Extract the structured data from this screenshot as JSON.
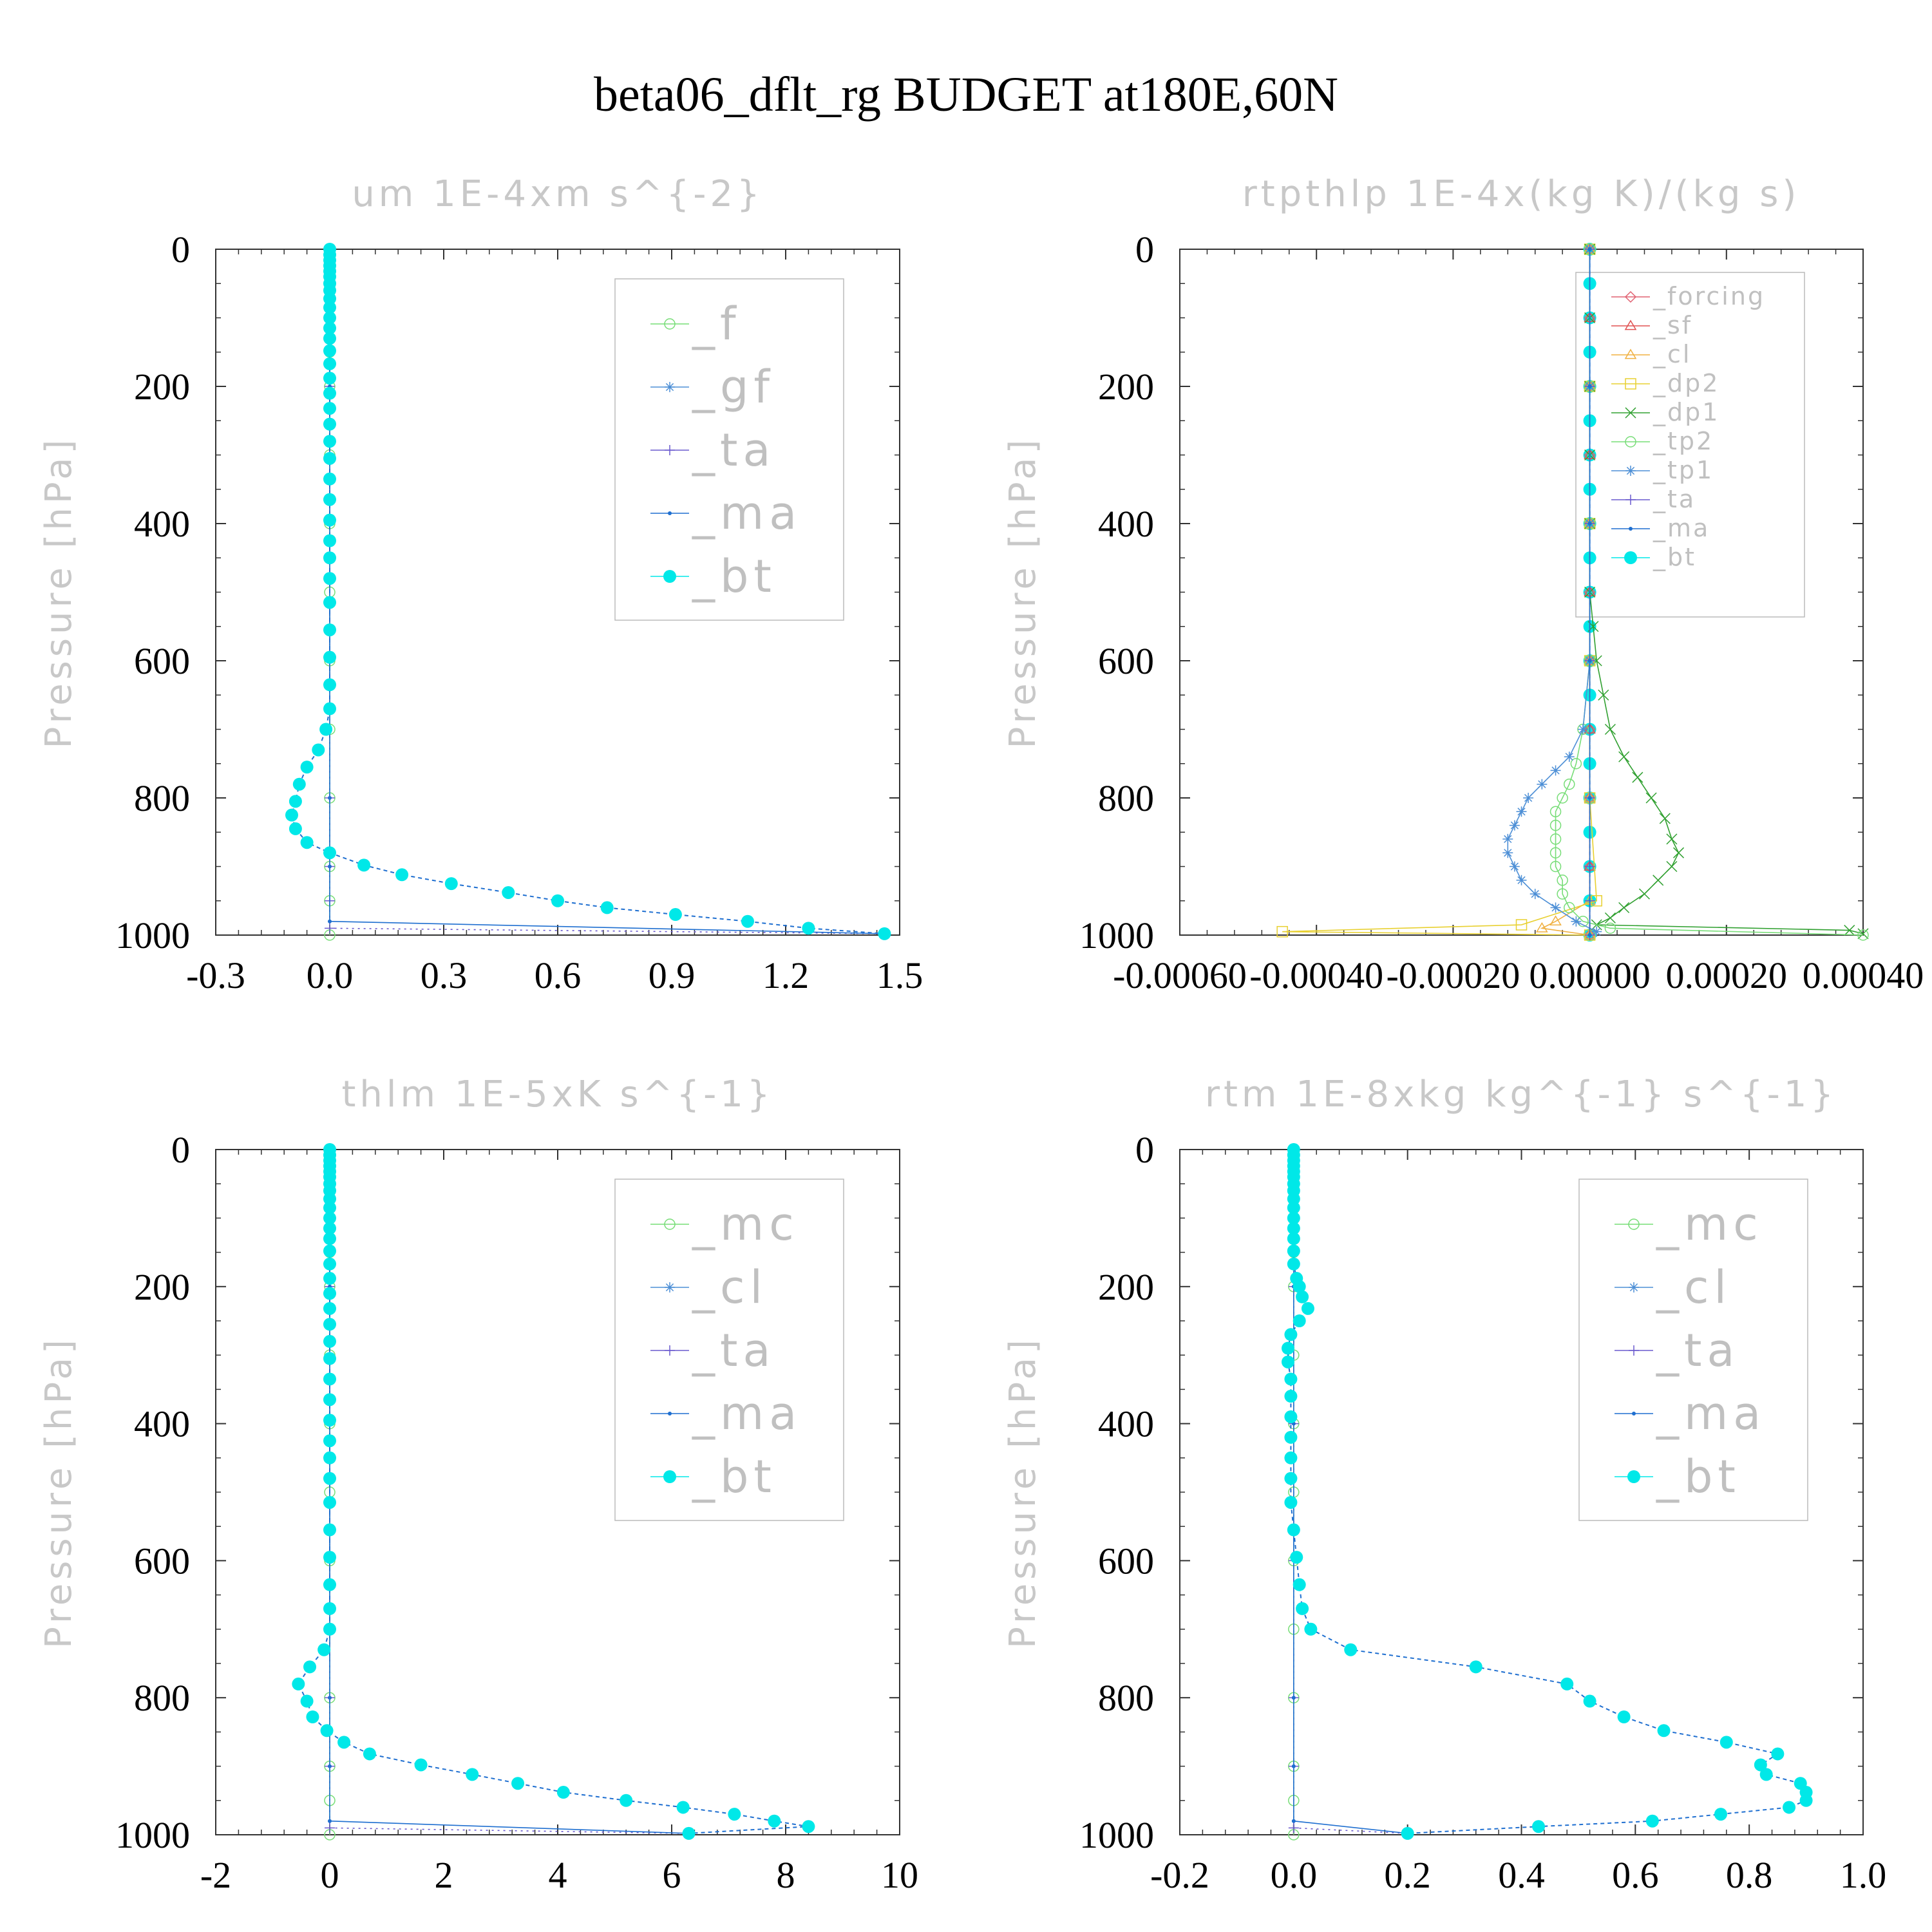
{
  "title": "beta06_dflt_rg  BUDGET at180E,60N",
  "colors": {
    "f": "#77dd77",
    "gf": "#4d8fd6",
    "ta": "#6a5acd",
    "ma": "#1f6fd0",
    "bt": "#00e8e8",
    "forcing": "#e06070",
    "sf": "#e05050",
    "cl_orange": "#f0b040",
    "dp2": "#e8d030",
    "dp1": "#30a030",
    "tp2": "#77dd77",
    "tp1": "#4d8fd6",
    "mc": "#77dd77",
    "cl": "#4d8fd6"
  },
  "chart_data": [
    {
      "type": "line",
      "title": "um   1E-4xm s^{-2}",
      "ylabel": "Pressure [hPa]",
      "xlim": [
        -0.3,
        1.5
      ],
      "ylim": [
        1000,
        0
      ],
      "xticks": [
        "-0.3",
        "0.0",
        "0.3",
        "0.6",
        "0.9",
        "1.2",
        "1.5"
      ],
      "yticks": [
        "0",
        "200",
        "400",
        "600",
        "800",
        "1000"
      ],
      "legend": [
        "_f",
        "_gf",
        "_ta",
        "_ma",
        "_bt"
      ],
      "legend_position": "top-right",
      "series": [
        {
          "name": "_f",
          "color_key": "f",
          "marker": "circle",
          "y": [
            0,
            50,
            100,
            150,
            200,
            300,
            400,
            500,
            600,
            700,
            800,
            900,
            950,
            1000
          ],
          "x": [
            0,
            0,
            0,
            0,
            0,
            0,
            0,
            0,
            0,
            0,
            0,
            0,
            0,
            0
          ]
        },
        {
          "name": "_ta",
          "color_key": "ta",
          "marker": "plus",
          "y": [
            0,
            200,
            400,
            600,
            800,
            900,
            950,
            990,
            998
          ],
          "x": [
            0,
            0,
            0,
            0,
            0,
            0,
            0,
            0,
            1.46
          ]
        },
        {
          "name": "_ma",
          "color_key": "ma",
          "marker": "dot",
          "y": [
            0,
            200,
            400,
            600,
            800,
            900,
            980,
            998
          ],
          "x": [
            0,
            0,
            0,
            0,
            0,
            0,
            0,
            1.46
          ]
        },
        {
          "name": "_bt",
          "color_key": "bt",
          "marker": "bigdot",
          "y": [
            0,
            8,
            16,
            24,
            32,
            40,
            50,
            60,
            72,
            85,
            100,
            115,
            130,
            148,
            167,
            188,
            210,
            232,
            255,
            280,
            305,
            335,
            365,
            395,
            425,
            450,
            480,
            515,
            555,
            595,
            635,
            670,
            700,
            730,
            755,
            780,
            805,
            825,
            845,
            865,
            880,
            898,
            912,
            925,
            938,
            950,
            960,
            970,
            980,
            990,
            998
          ],
          "x": [
            0,
            0,
            0,
            0,
            0,
            0,
            0,
            0,
            0,
            0,
            0,
            0,
            0,
            0,
            0,
            0,
            0,
            0,
            0,
            0,
            0,
            0,
            0,
            0,
            0,
            0,
            0,
            0,
            0,
            0,
            0,
            0,
            -0.01,
            -0.03,
            -0.06,
            -0.08,
            -0.09,
            -0.1,
            -0.09,
            -0.06,
            0.0,
            0.09,
            0.19,
            0.32,
            0.47,
            0.6,
            0.73,
            0.91,
            1.1,
            1.26,
            1.46
          ]
        }
      ]
    },
    {
      "type": "line",
      "title": "rtpthlp   1E-4x(kg K)/(kg s)",
      "ylabel": "Pressure [hPa]",
      "xlim": [
        -0.0006,
        0.0004
      ],
      "ylim": [
        1000,
        0
      ],
      "xticks": [
        "-0.00060",
        "-0.00040",
        "-0.00020",
        "0.00000",
        "0.00020",
        "0.00040"
      ],
      "yticks": [
        "0",
        "200",
        "400",
        "600",
        "800",
        "1000"
      ],
      "legend": [
        "_forcing",
        "_sf",
        "_cl",
        "_dp2",
        "_dp1",
        "_tp2",
        "_tp1",
        "_ta",
        "_ma",
        "_bt"
      ],
      "legend_position": "top-right",
      "series": [
        {
          "name": "_bt",
          "color_key": "bt",
          "marker": "bigdot",
          "y": [
            0,
            50,
            100,
            150,
            200,
            250,
            300,
            350,
            400,
            450,
            500,
            550,
            600,
            650,
            700,
            750,
            800,
            850,
            900,
            950,
            1000
          ],
          "x": [
            0,
            0,
            0,
            0,
            0,
            0,
            0,
            0,
            0,
            0,
            0,
            0,
            0,
            0,
            0,
            0,
            0,
            0,
            0,
            0,
            0
          ]
        },
        {
          "name": "_forcing",
          "color_key": "forcing",
          "marker": "diamond",
          "y": [
            0,
            100,
            200,
            300,
            400,
            500,
            600,
            700,
            800,
            900,
            1000
          ],
          "x": [
            0,
            0,
            0,
            0,
            0,
            0,
            0,
            0,
            0,
            0,
            0
          ]
        },
        {
          "name": "_sf",
          "color_key": "sf",
          "marker": "triangle",
          "y": [
            0,
            100,
            200,
            300,
            400,
            500,
            600,
            700,
            800,
            900,
            1000
          ],
          "x": [
            0,
            0,
            0,
            0,
            0,
            0,
            0,
            0,
            0,
            0,
            0
          ]
        },
        {
          "name": "_cl",
          "color_key": "cl_orange",
          "marker": "triangle",
          "y": [
            0,
            200,
            400,
            600,
            800,
            950,
            980,
            990,
            1000
          ],
          "x": [
            0,
            0,
            0,
            0,
            0,
            0,
            -5e-05,
            -7e-05,
            0
          ]
        },
        {
          "name": "_dp2",
          "color_key": "dp2",
          "marker": "square",
          "y": [
            0,
            200,
            400,
            600,
            800,
            950,
            985,
            995,
            1000
          ],
          "x": [
            0,
            0,
            0,
            0,
            0,
            1e-05,
            -0.0001,
            -0.00045,
            0
          ]
        },
        {
          "name": "_dp1",
          "color_key": "dp1",
          "marker": "cross",
          "y": [
            0,
            100,
            200,
            300,
            400,
            500,
            550,
            600,
            650,
            700,
            740,
            770,
            800,
            830,
            860,
            880,
            900,
            920,
            940,
            960,
            975,
            985,
            993,
            998
          ],
          "x": [
            0,
            0,
            0,
            0,
            0,
            0,
            5e-06,
            1e-05,
            2e-05,
            3e-05,
            5e-05,
            7e-05,
            9e-05,
            0.00011,
            0.00012,
            0.00013,
            0.00012,
            0.0001,
            8e-05,
            5e-05,
            3e-05,
            1e-05,
            0.00038,
            0.0004
          ]
        },
        {
          "name": "_tp2",
          "color_key": "tp2",
          "marker": "circle",
          "y": [
            0,
            200,
            400,
            600,
            700,
            750,
            780,
            800,
            820,
            840,
            860,
            880,
            900,
            920,
            940,
            960,
            980,
            990,
            1000
          ],
          "x": [
            0,
            0,
            0,
            0,
            -1e-05,
            -2e-05,
            -3e-05,
            -4e-05,
            -5e-05,
            -5e-05,
            -5e-05,
            -5e-05,
            -5e-05,
            -4e-05,
            -4e-05,
            -3e-05,
            -1e-05,
            3e-05,
            0.0004
          ]
        },
        {
          "name": "_tp1",
          "color_key": "tp1",
          "marker": "star",
          "y": [
            0,
            200,
            400,
            600,
            700,
            740,
            760,
            780,
            800,
            820,
            840,
            860,
            880,
            900,
            920,
            940,
            960,
            980,
            995
          ],
          "x": [
            0,
            0,
            0,
            0,
            -1e-05,
            -3e-05,
            -5e-05,
            -7e-05,
            -9e-05,
            -0.0001,
            -0.00011,
            -0.00012,
            -0.00012,
            -0.00011,
            -0.0001,
            -8e-05,
            -5e-05,
            -2e-05,
            1e-05
          ]
        },
        {
          "name": "_ta",
          "color_key": "ta",
          "marker": "plus",
          "y": [
            0,
            200,
            400,
            600,
            800,
            900,
            950,
            1000
          ],
          "x": [
            0,
            0,
            0,
            0,
            0,
            0,
            0,
            0
          ]
        },
        {
          "name": "_ma",
          "color_key": "ma",
          "marker": "dot",
          "y": [
            0,
            200,
            400,
            600,
            800,
            1000
          ],
          "x": [
            0,
            0,
            0,
            0,
            0,
            0
          ]
        }
      ]
    },
    {
      "type": "line",
      "title": "thlm   1E-5xK s^{-1}",
      "ylabel": "Pressure [hPa]",
      "xlim": [
        -2,
        10
      ],
      "ylim": [
        1000,
        0
      ],
      "xticks": [
        "-2",
        "0",
        "2",
        "4",
        "6",
        "8",
        "10"
      ],
      "yticks": [
        "0",
        "200",
        "400",
        "600",
        "800",
        "1000"
      ],
      "legend": [
        "_mc",
        "_cl",
        "_ta",
        "_ma",
        "_bt"
      ],
      "legend_position": "top-right",
      "series": [
        {
          "name": "_mc",
          "color_key": "mc",
          "marker": "circle",
          "y": [
            0,
            50,
            100,
            150,
            200,
            300,
            400,
            500,
            600,
            700,
            800,
            900,
            950,
            1000
          ],
          "x": [
            0,
            0,
            0,
            0,
            0,
            0,
            0,
            0,
            0,
            0,
            0,
            0,
            0,
            0
          ]
        },
        {
          "name": "_ta",
          "color_key": "ta",
          "marker": "plus",
          "y": [
            0,
            200,
            400,
            600,
            800,
            900,
            990,
            998
          ],
          "x": [
            0,
            0,
            0,
            0,
            0,
            0,
            0,
            6.3
          ]
        },
        {
          "name": "_ma",
          "color_key": "ma",
          "marker": "dot",
          "y": [
            0,
            200,
            400,
            600,
            800,
            900,
            980,
            998
          ],
          "x": [
            0,
            0,
            0,
            0,
            0,
            0,
            0,
            6.3
          ]
        },
        {
          "name": "_bt",
          "color_key": "bt",
          "marker": "bigdot",
          "y": [
            0,
            8,
            16,
            24,
            32,
            40,
            50,
            60,
            72,
            85,
            100,
            115,
            130,
            148,
            167,
            188,
            210,
            232,
            255,
            280,
            305,
            335,
            365,
            395,
            425,
            450,
            480,
            515,
            555,
            595,
            635,
            670,
            700,
            730,
            755,
            780,
            805,
            828,
            848,
            865,
            882,
            898,
            912,
            925,
            938,
            950,
            960,
            970,
            980,
            988,
            998
          ],
          "x": [
            0,
            0,
            0,
            0,
            0,
            0,
            0,
            0,
            0,
            0,
            0,
            0,
            0,
            0,
            0,
            0,
            0,
            0,
            0,
            0,
            0,
            0,
            0,
            0,
            0,
            0,
            0,
            0,
            0,
            0,
            0,
            0,
            0,
            -0.1,
            -0.35,
            -0.55,
            -0.4,
            -0.3,
            -0.05,
            0.25,
            0.7,
            1.6,
            2.5,
            3.3,
            4.1,
            5.2,
            6.2,
            7.1,
            7.8,
            8.4,
            6.3
          ]
        }
      ]
    },
    {
      "type": "line",
      "title": "rtm   1E-8xkg kg^{-1} s^{-1}",
      "ylabel": "Pressure [hPa]",
      "xlim": [
        -0.2,
        1.0
      ],
      "ylim": [
        1000,
        0
      ],
      "xticks": [
        "-0.2",
        "0.0",
        "0.2",
        "0.4",
        "0.6",
        "0.8",
        "1.0"
      ],
      "yticks": [
        "0",
        "200",
        "400",
        "600",
        "800",
        "1000"
      ],
      "legend": [
        "_mc",
        "_cl",
        "_ta",
        "_ma",
        "_bt"
      ],
      "legend_position": "top-right",
      "series": [
        {
          "name": "_mc",
          "color_key": "mc",
          "marker": "circle",
          "y": [
            0,
            50,
            100,
            150,
            200,
            300,
            400,
            500,
            600,
            700,
            800,
            900,
            950,
            1000
          ],
          "x": [
            0,
            0,
            0,
            0,
            0,
            0,
            0,
            0,
            0,
            0,
            0,
            0,
            0,
            0
          ]
        },
        {
          "name": "_ta",
          "color_key": "ta",
          "marker": "plus",
          "y": [
            0,
            200,
            400,
            600,
            800,
            900,
            990,
            998
          ],
          "x": [
            0,
            0,
            0,
            0,
            0,
            0,
            0,
            0.2
          ]
        },
        {
          "name": "_ma",
          "color_key": "ma",
          "marker": "dot",
          "y": [
            0,
            200,
            400,
            600,
            800,
            900,
            980,
            998
          ],
          "x": [
            0,
            0,
            0,
            0,
            0,
            0,
            0,
            0.2
          ]
        },
        {
          "name": "_bt",
          "color_key": "bt",
          "marker": "bigdot",
          "y": [
            0,
            8,
            16,
            24,
            32,
            40,
            50,
            60,
            72,
            85,
            100,
            115,
            130,
            148,
            167,
            188,
            200,
            215,
            232,
            250,
            270,
            290,
            310,
            335,
            360,
            390,
            420,
            450,
            480,
            515,
            555,
            595,
            635,
            670,
            700,
            730,
            755,
            780,
            805,
            828,
            848,
            865,
            882,
            898,
            912,
            925,
            938,
            950,
            960,
            970,
            980,
            988,
            998
          ],
          "x": [
            0,
            0,
            0,
            0,
            0,
            0,
            0,
            0,
            0,
            0,
            0,
            0,
            0,
            0,
            0,
            0.005,
            0.01,
            0.015,
            0.025,
            0.01,
            -0.005,
            -0.01,
            -0.01,
            -0.005,
            -0.005,
            -0.005,
            -0.005,
            -0.005,
            -0.005,
            -0.005,
            0.0,
            0.005,
            0.01,
            0.015,
            0.03,
            0.1,
            0.32,
            0.48,
            0.52,
            0.58,
            0.65,
            0.76,
            0.85,
            0.82,
            0.83,
            0.89,
            0.9,
            0.9,
            0.87,
            0.75,
            0.63,
            0.43,
            0.2
          ]
        }
      ]
    }
  ]
}
